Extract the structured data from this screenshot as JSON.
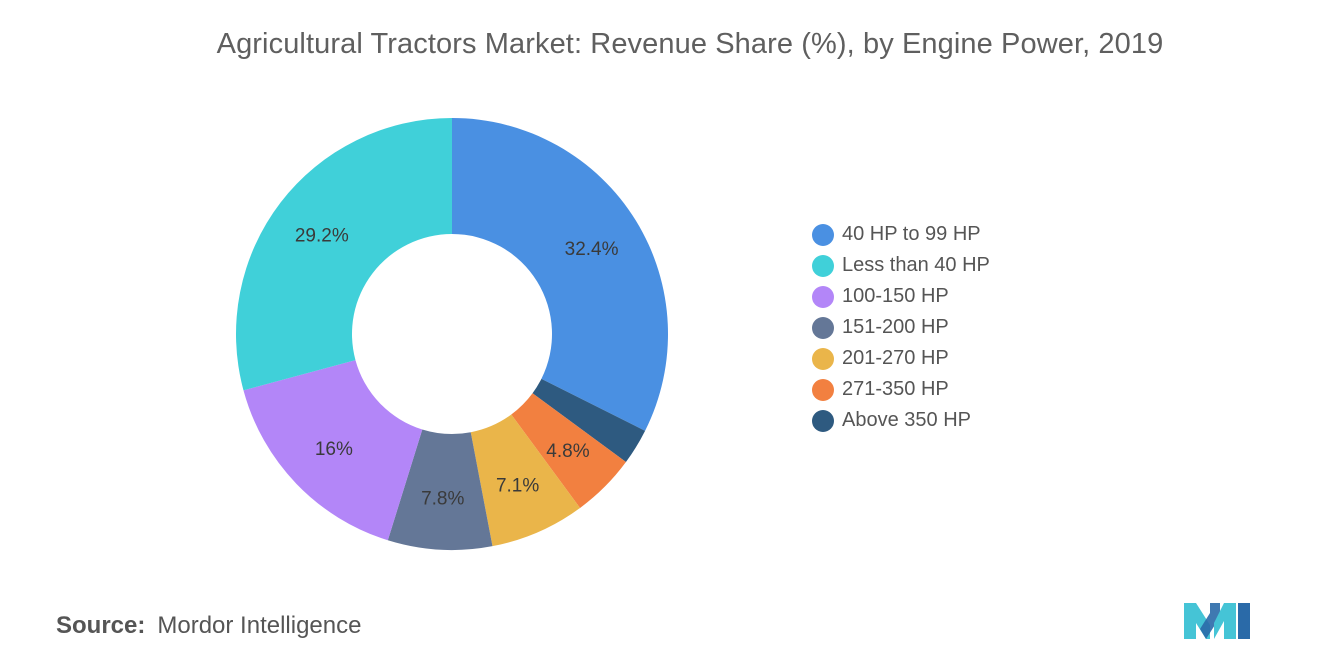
{
  "title": "Agricultural Tractors Market: Revenue Share (%), by Engine Power, 2019",
  "source": {
    "label": "Source:",
    "value": "Mordor Intelligence"
  },
  "logo": {
    "icon": "mordor-intelligence-logo",
    "colors": [
      "#45c4d6",
      "#2a6aa8"
    ]
  },
  "chart_data": {
    "type": "pie",
    "donut": true,
    "start_angle_deg": 90,
    "direction": "clockwise",
    "legend_position": "right",
    "slices": [
      {
        "name": "40 HP to 99 HP",
        "value": 32.4,
        "label": "32.4%",
        "color": "#4a90e2"
      },
      {
        "name": "Above 350 HP",
        "value": 2.7,
        "label": "",
        "color": "#2e5a80"
      },
      {
        "name": "271-350 HP",
        "value": 4.8,
        "label": "4.8%",
        "color": "#f28040"
      },
      {
        "name": "201-270 HP",
        "value": 7.1,
        "label": "7.1%",
        "color": "#eab54a"
      },
      {
        "name": "151-200 HP",
        "value": 7.8,
        "label": "7.8%",
        "color": "#647797"
      },
      {
        "name": "100-150 HP",
        "value": 16,
        "label": "16%",
        "color": "#b386f8"
      },
      {
        "name": "Less than 40 HP",
        "value": 29.2,
        "label": "29.2%",
        "color": "#40d0d9"
      }
    ],
    "legend": [
      {
        "name": "40 HP to 99 HP",
        "color": "#4a90e2"
      },
      {
        "name": "Less than 40 HP",
        "color": "#40d0d9"
      },
      {
        "name": "100-150 HP",
        "color": "#b386f8"
      },
      {
        "name": "151-200 HP",
        "color": "#647797"
      },
      {
        "name": "201-270 HP",
        "color": "#eab54a"
      },
      {
        "name": "271-350 HP",
        "color": "#f28040"
      },
      {
        "name": "Above 350 HP",
        "color": "#2e5a80"
      }
    ]
  }
}
